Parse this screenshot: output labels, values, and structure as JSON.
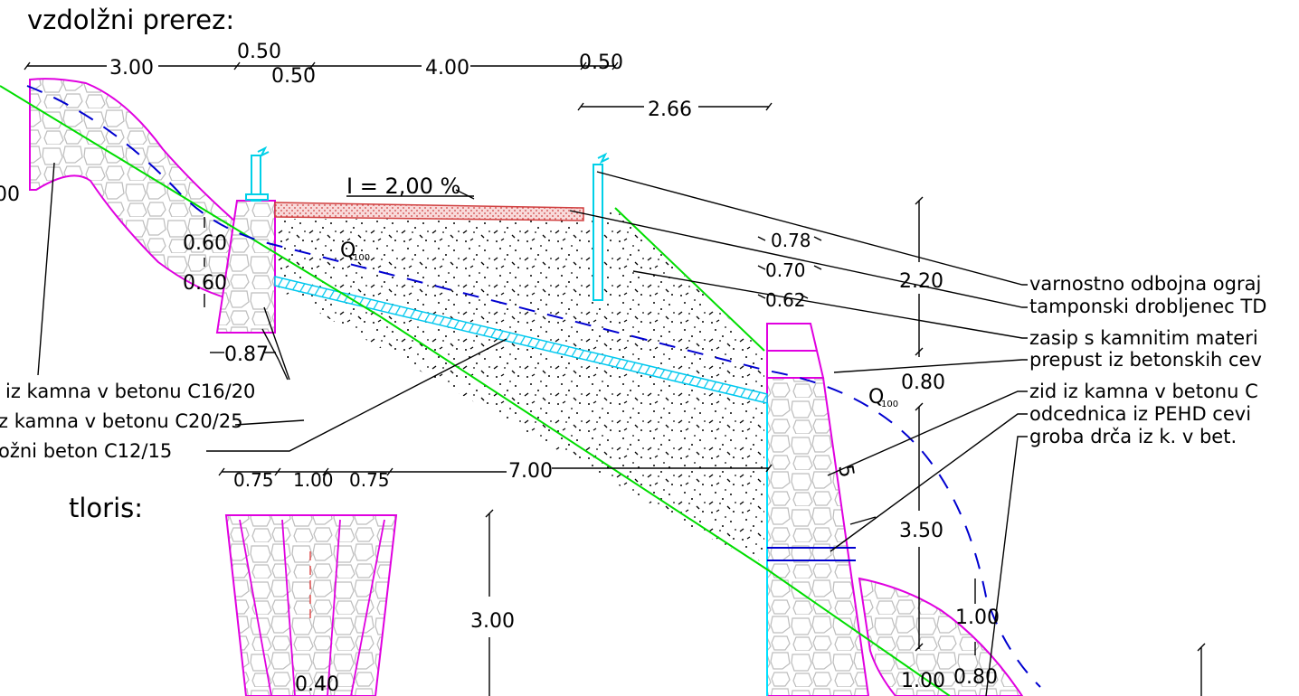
{
  "titles": {
    "longitudinal": "vzdolžni prerez:",
    "plan": "tloris:"
  },
  "slope": {
    "text": "I = 2,00 %"
  },
  "flow_label": {
    "q": "Q",
    "sub": "100"
  },
  "dimensions": {
    "top_300": "3.00",
    "top_050_a": "0.50",
    "top_050_b": "0.50",
    "top_400": "4.00",
    "top_050_c": "0.50",
    "d_266": "2.66",
    "left_00": "00",
    "d_060_a": "0.60",
    "d_060_b": "0.60",
    "d_087": "0.87",
    "d_078": "0.78",
    "d_070": "0.70",
    "d_062": "0.62",
    "d_220": "2.20",
    "d_080": "0.80",
    "d_350": "3.50",
    "d_100_a": "1.00",
    "d_100_b": "1.00",
    "d_080_b": "0.80",
    "d_700": "7.00",
    "d_075_a": "0.75",
    "d_100_c": "1.00",
    "d_075_b": "0.75",
    "d_300_b": "3.00",
    "d_040": "0.40",
    "d_5": "5"
  },
  "labels_right": [
    "varnostno odbojna ograj",
    "tamponski drobljenec TD",
    "zasip s kamnitim materi",
    "prepust iz betonskih cev",
    "zid iz kamna v betonu C",
    "odcednica iz PEHD cevi",
    "groba drča iz k. v bet."
  ],
  "labels_left": [
    "iz kamna v betonu C16/20",
    "z kamna v betonu C20/25",
    "ožni beton C12/15"
  ],
  "colors": {
    "wall": "#e000e0",
    "terrain": "#00e000",
    "pipe": "#00e0ff",
    "water": "#0000d0",
    "pavement": "#e05050",
    "lines": "#000000"
  }
}
